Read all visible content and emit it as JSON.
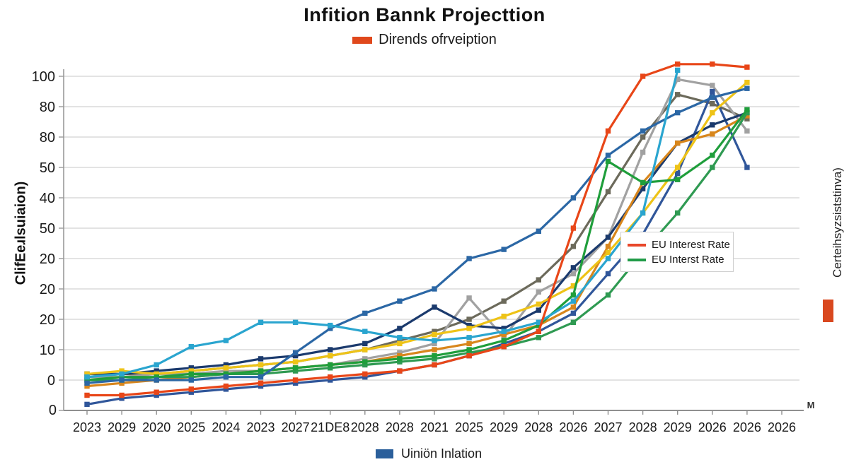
{
  "chart_data": {
    "type": "line",
    "title": "Infition Bannk Projecttion",
    "subtitle_legend": {
      "label": "Dirends ofrveiption",
      "color": "#e0481c"
    },
    "ylabel_left": "ClifEeɹlsuiaion)",
    "ylabel_right": "Certeihsyzsiststinva)",
    "right_marker_color": "#d9481f",
    "corner_label": "M",
    "grid": true,
    "ylim": [
      -10,
      110
    ],
    "y_tick_labels": [
      "100",
      "80",
      "80",
      "50",
      "40",
      "50",
      "20",
      "20",
      "20",
      "10",
      "0",
      "0"
    ],
    "categories": [
      "2023",
      "2029",
      "2020",
      "2025",
      "2024",
      "2023",
      "2027",
      "21DE8",
      "2028",
      "2028",
      "2021",
      "2025",
      "2029",
      "2028",
      "2026",
      "2027",
      "2028",
      "2029",
      "2026",
      "2026",
      "2026"
    ],
    "legend_box": {
      "position": "middle-right",
      "items": [
        {
          "label": "EU Interest Rate",
          "color": "#e8472a"
        },
        {
          "label": "EU Interst Rate",
          "color": "#219b48"
        }
      ]
    },
    "bottom_legend": {
      "label": "Uiniön Inlation",
      "color": "#2b5f9b"
    },
    "series": [
      {
        "name": "olive-gray",
        "color": "#6c6a5b",
        "values": [
          1,
          2,
          2,
          3,
          4,
          5,
          6,
          8,
          10,
          13,
          16,
          20,
          26,
          33,
          44,
          62,
          80,
          94,
          91,
          86,
          null
        ]
      },
      {
        "name": "gray",
        "color": "#a1a1a1",
        "values": [
          1,
          1,
          2,
          2,
          3,
          3,
          4,
          5,
          7,
          9,
          12,
          27,
          14,
          29,
          35,
          47,
          75,
          99,
          97,
          82,
          null
        ]
      },
      {
        "name": "steel-blue",
        "color": "#30569a",
        "values": [
          -8,
          -6,
          -5,
          -4,
          -3,
          -2,
          -1,
          0,
          1,
          3,
          5,
          8,
          12,
          16,
          22,
          35,
          48,
          68,
          95,
          70,
          null
        ]
      },
      {
        "name": "navy",
        "color": "#1b3a6d",
        "values": [
          2,
          2,
          3,
          4,
          5,
          7,
          8,
          10,
          12,
          17,
          24,
          18,
          17,
          23,
          37,
          47,
          63,
          78,
          84,
          88,
          null
        ]
      },
      {
        "name": "orange",
        "color": "#d8861c",
        "values": [
          -2,
          -1,
          0,
          1,
          2,
          3,
          4,
          5,
          6,
          8,
          10,
          12,
          15,
          18,
          24,
          44,
          65,
          78,
          81,
          87,
          null
        ]
      },
      {
        "name": "yellow",
        "color": "#eec317",
        "values": [
          2,
          3,
          2,
          3,
          4,
          5,
          6,
          8,
          10,
          12,
          15,
          17,
          21,
          25,
          31,
          42,
          55,
          70,
          88,
          98,
          null
        ]
      },
      {
        "name": "green-2",
        "color": "#2f9a52",
        "values": [
          0,
          0,
          1,
          1,
          2,
          2,
          3,
          4,
          5,
          6,
          7,
          9,
          11,
          14,
          19,
          28,
          42,
          55,
          70,
          88,
          null
        ]
      },
      {
        "name": "EU Interst Rate",
        "color": "#1f9e3b",
        "values": [
          0,
          1,
          1,
          2,
          2,
          3,
          4,
          5,
          6,
          7,
          8,
          10,
          13,
          18,
          28,
          72,
          65,
          66,
          74,
          89,
          null
        ]
      },
      {
        "name": "Uiniön Inlation",
        "color": "#2b67a5",
        "values": [
          -1,
          0,
          0,
          0,
          1,
          1,
          9,
          17,
          22,
          26,
          30,
          40,
          43,
          49,
          60,
          74,
          82,
          88,
          93,
          96,
          null
        ]
      },
      {
        "name": "cyan",
        "color": "#2aa5cf",
        "values": [
          1,
          2,
          5,
          11,
          13,
          19,
          19,
          18,
          16,
          14,
          13,
          14,
          16,
          19,
          26,
          40,
          55,
          102,
          null,
          null,
          null
        ]
      },
      {
        "name": "EU Interest Rate",
        "color": "#e84618",
        "values": [
          -5,
          -5,
          -4,
          -3,
          -2,
          -1,
          0,
          1,
          2,
          3,
          5,
          8,
          11,
          16,
          50,
          82,
          100,
          104,
          104,
          103,
          null
        ]
      }
    ]
  }
}
